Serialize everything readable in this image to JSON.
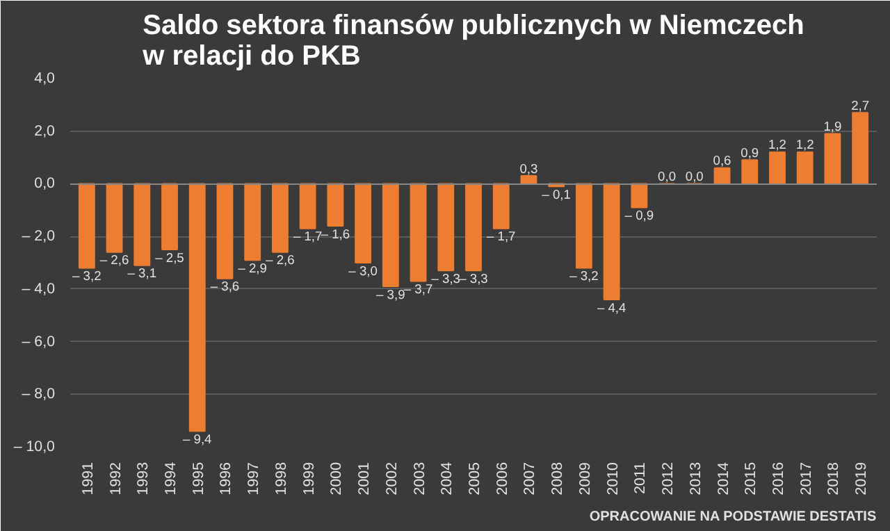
{
  "chart_data": {
    "type": "bar",
    "title": "Saldo sektora finansów publicznych w Niemczech\nw relacji do PKB",
    "categories": [
      "1991",
      "1992",
      "1993",
      "1994",
      "1995",
      "1996",
      "1997",
      "1998",
      "1999",
      "2000",
      "2001",
      "2002",
      "2003",
      "2004",
      "2005",
      "2006",
      "2007",
      "2008",
      "2009",
      "2010",
      "2011",
      "2012",
      "2013",
      "2014",
      "2015",
      "2016",
      "2017",
      "2018",
      "2019"
    ],
    "values": [
      -3.2,
      -2.6,
      -3.1,
      -2.5,
      -9.4,
      -3.6,
      -2.9,
      -2.6,
      -1.7,
      -1.6,
      -3.0,
      -3.9,
      -3.7,
      -3.3,
      -3.3,
      -1.7,
      0.3,
      -0.1,
      -3.2,
      -4.4,
      -0.9,
      0.0,
      0.0,
      0.6,
      0.9,
      1.2,
      1.2,
      1.9,
      2.7
    ],
    "value_labels": [
      "– 3,2",
      "– 2,6",
      "– 3,1",
      "– 2,5",
      "– 9,4",
      "– 3,6",
      "– 2,9",
      "– 2,6",
      "– 1,7",
      "– 1,6",
      "– 3,0",
      "– 3,9",
      "– 3,7",
      "– 3,3",
      "– 3,3",
      "– 1,7",
      "0,3",
      "– 0,1",
      "– 3,2",
      "– 4,4",
      "– 0,9",
      "0,0",
      "0,0",
      "0,6",
      "0,9",
      "1,2",
      "1,2",
      "1,9",
      "2,7"
    ],
    "color": "#ed7d31",
    "ylim": [
      -10,
      4
    ],
    "yticks": [
      {
        "value": -10,
        "label": "– 10,0"
      },
      {
        "value": -8,
        "label": "– 8,0"
      },
      {
        "value": -6,
        "label": "– 6,0"
      },
      {
        "value": -4,
        "label": "– 4,0"
      },
      {
        "value": -2,
        "label": "– 2,0"
      },
      {
        "value": 0,
        "label": "0,0"
      },
      {
        "value": 2,
        "label": "2,0"
      },
      {
        "value": 4,
        "label": "4,0"
      }
    ],
    "grid": "y",
    "annotations": [
      "OPRACOWANIE NA PODSTAWIE DESTATIS"
    ]
  }
}
